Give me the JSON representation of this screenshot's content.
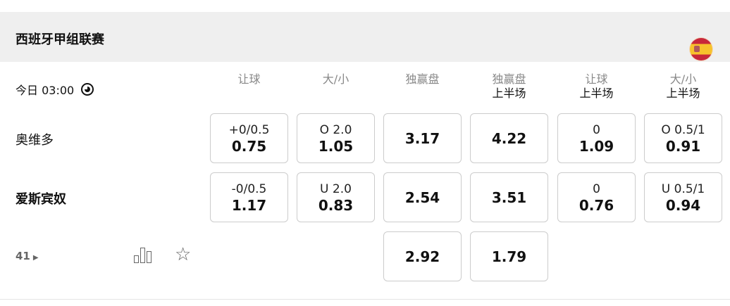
{
  "league": {
    "title": "西班牙甲组联赛",
    "flag_icon": "spain-flag"
  },
  "match": {
    "time": "今日 03:00",
    "home": "奥维多",
    "away": "爱斯宾奴",
    "more_count": "41"
  },
  "columns": [
    {
      "line1": "让球",
      "line2": ""
    },
    {
      "line1": "大/小",
      "line2": ""
    },
    {
      "line1": "独赢盘",
      "line2": ""
    },
    {
      "line1": "独赢盘",
      "line2": "上半场"
    },
    {
      "line1": "让球",
      "line2": "上半场"
    },
    {
      "line1": "大/小",
      "line2": "上半场"
    }
  ],
  "rows": [
    [
      {
        "line": "+0/0.5",
        "odds": "0.75"
      },
      {
        "line": "O 2.0",
        "odds": "1.05"
      },
      {
        "line": "",
        "odds": "3.17"
      },
      {
        "line": "",
        "odds": "4.22"
      },
      {
        "line": "0",
        "odds": "1.09"
      },
      {
        "line": "O 0.5/1",
        "odds": "0.91"
      }
    ],
    [
      {
        "line": "-0/0.5",
        "odds": "1.17"
      },
      {
        "line": "U 2.0",
        "odds": "0.83"
      },
      {
        "line": "",
        "odds": "2.54"
      },
      {
        "line": "",
        "odds": "3.51"
      },
      {
        "line": "0",
        "odds": "0.76"
      },
      {
        "line": "U 0.5/1",
        "odds": "0.94"
      }
    ],
    [
      null,
      null,
      {
        "line": "",
        "odds": "2.92"
      },
      {
        "line": "",
        "odds": "1.79"
      },
      null,
      null
    ]
  ]
}
